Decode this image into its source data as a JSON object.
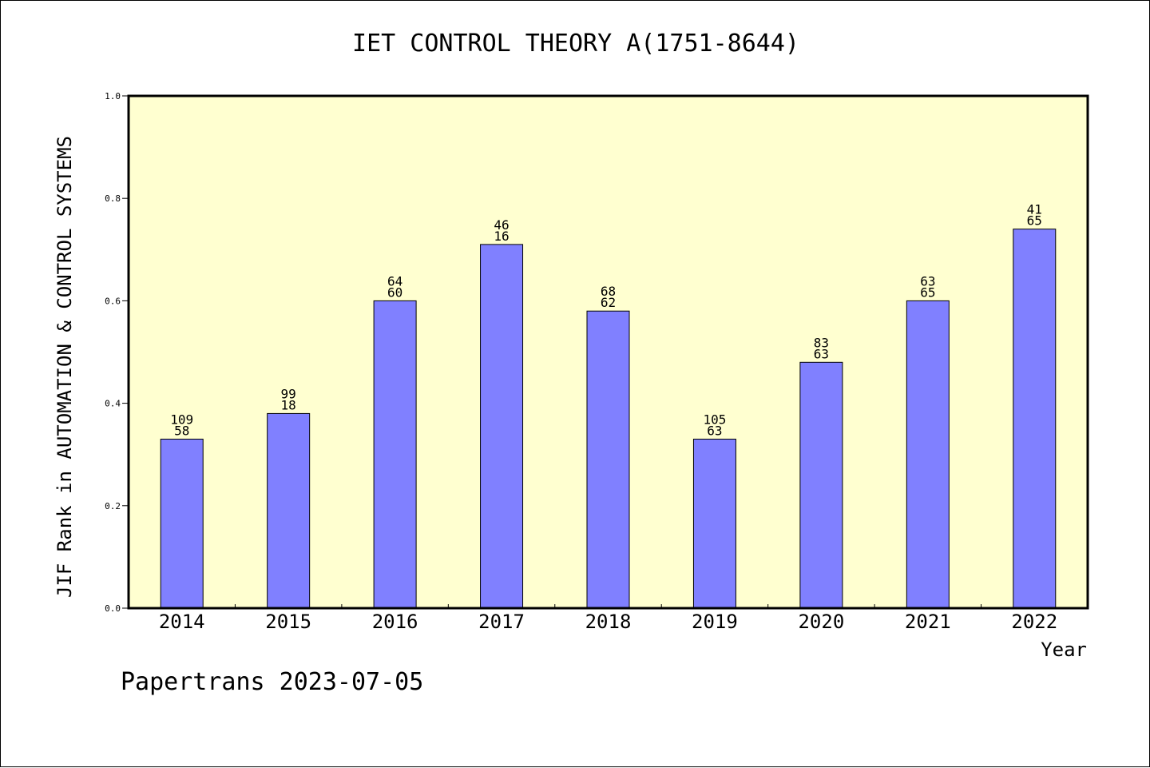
{
  "chart_data": {
    "type": "bar",
    "title": "IET CONTROL THEORY A(1751-8644)",
    "xlabel": "Year",
    "ylabel": "JIF Rank in AUTOMATION & CONTROL SYSTEMS",
    "categories": [
      "2014",
      "2015",
      "2016",
      "2017",
      "2018",
      "2019",
      "2020",
      "2021",
      "2022"
    ],
    "values": [
      0.33,
      0.38,
      0.6,
      0.71,
      0.58,
      0.33,
      0.48,
      0.6,
      0.74
    ],
    "label_top": [
      "109",
      "99",
      "64",
      "46",
      "68",
      "105",
      "83",
      "63",
      "41"
    ],
    "label_bottom": [
      "58",
      "18",
      "60",
      "16",
      "62",
      "63",
      "63",
      "65",
      "65"
    ],
    "ylim": [
      0,
      1.0
    ],
    "yticks": [
      "0.0",
      "0.2",
      "0.4",
      "0.6",
      "0.8",
      "1.0"
    ],
    "bar_color": "#8080ff",
    "plot_background": "#ffffd0",
    "grid": false,
    "legend": "none"
  },
  "footer": "Papertrans 2023-07-05"
}
